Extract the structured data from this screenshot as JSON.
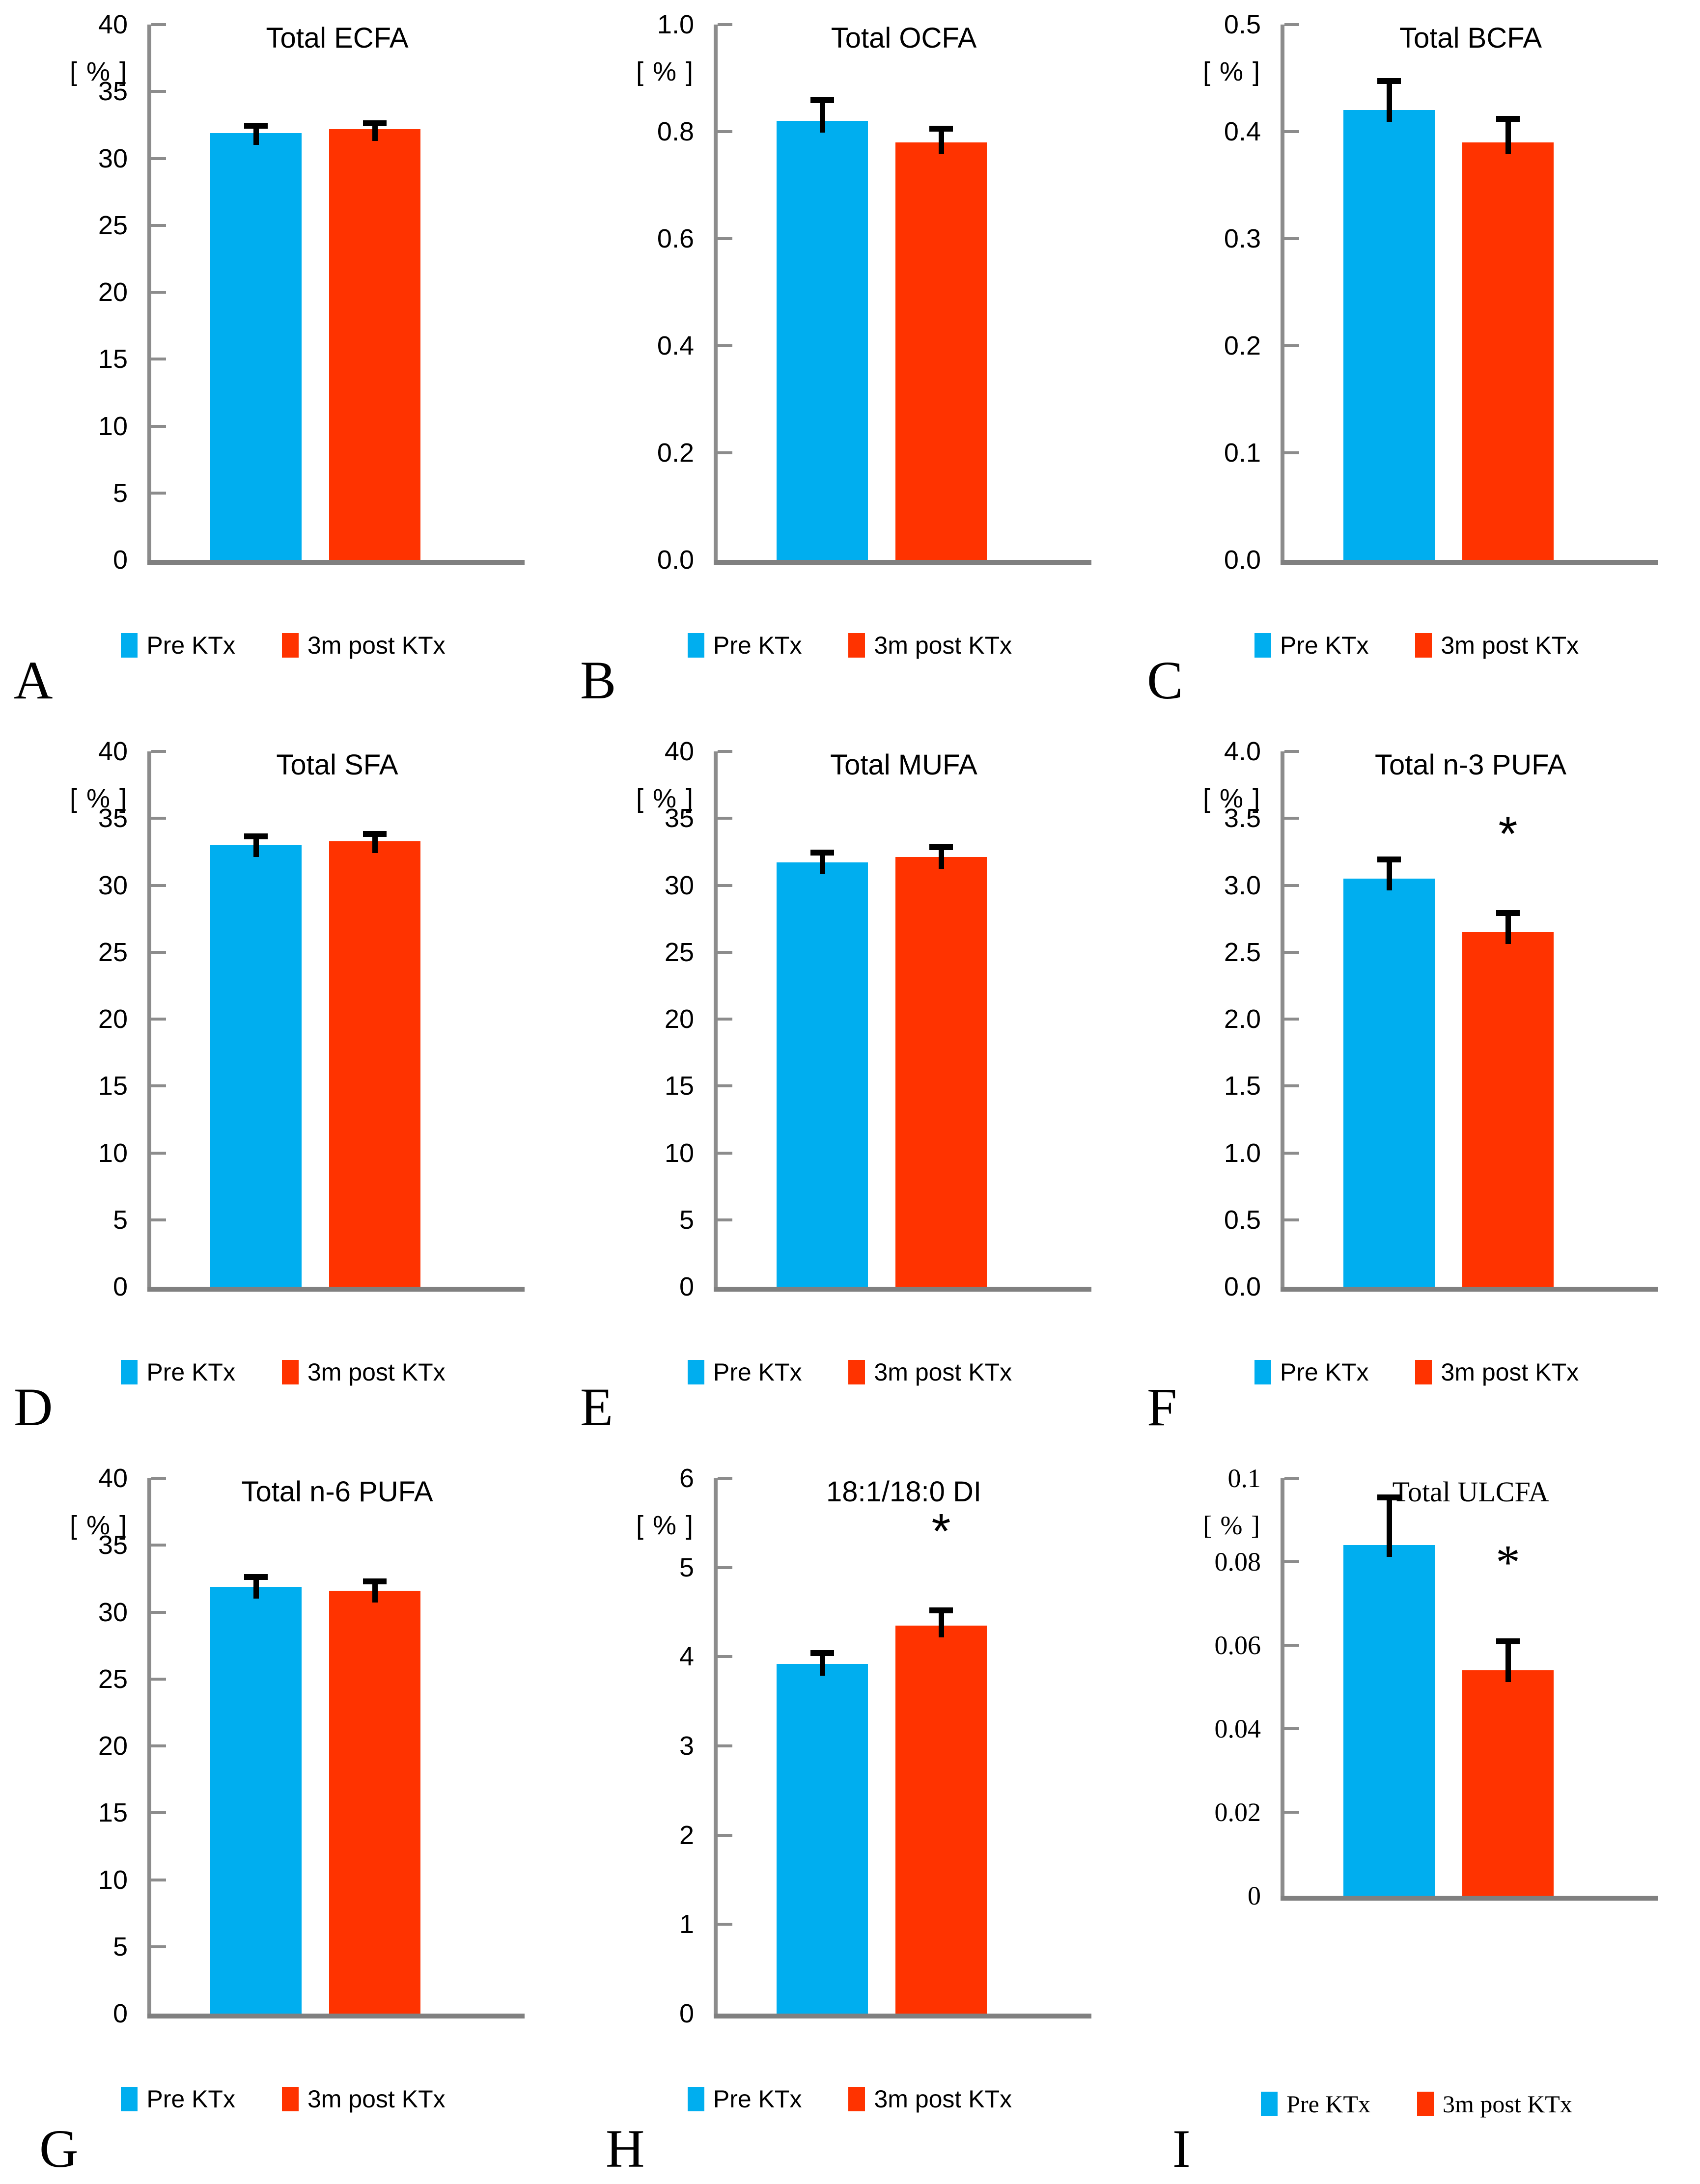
{
  "figure": {
    "colors": {
      "pre": "#00AEEF",
      "post": "#FF3300",
      "axis": "#8C8C8C",
      "baseline": "#808080",
      "error": "#000000",
      "text": "#000000"
    },
    "legend": {
      "pre": "Pre KTx",
      "post": "3m post KTx"
    },
    "significance_marker": "*"
  },
  "chart_data": [
    {
      "panel": "A",
      "type": "bar",
      "title": "Total ECFA",
      "unit_label": "[ % ]",
      "ylim": [
        0,
        40
      ],
      "tick_labels": [
        "40",
        "35",
        "30",
        "25",
        "20",
        "15",
        "10",
        "5",
        "0"
      ],
      "grid": false,
      "legend_position": "bottom",
      "font": "sans",
      "compact": false,
      "categories": [
        "Pre KTx",
        "3m post KTx"
      ],
      "series": [
        {
          "name": "Pre KTx",
          "value": 31.9,
          "error": 0.4
        },
        {
          "name": "3m post KTx",
          "value": 32.2,
          "error": 0.3
        }
      ],
      "significant": false
    },
    {
      "panel": "B",
      "type": "bar",
      "title": "Total OCFA",
      "unit_label": "[ % ]",
      "ylim": [
        0,
        1.0
      ],
      "tick_labels": [
        "1.0",
        "0.8",
        "0.6",
        "0.4",
        "0.2",
        "0.0"
      ],
      "grid": false,
      "legend_position": "bottom",
      "font": "sans",
      "compact": false,
      "categories": [
        "Pre KTx",
        "3m post KTx"
      ],
      "series": [
        {
          "name": "Pre KTx",
          "value": 0.82,
          "error": 0.035
        },
        {
          "name": "3m post KTx",
          "value": 0.78,
          "error": 0.022
        }
      ],
      "significant": false
    },
    {
      "panel": "C",
      "type": "bar",
      "title": "Total BCFA",
      "unit_label": "[ % ]",
      "ylim": [
        0,
        0.5
      ],
      "tick_labels": [
        "0.5",
        "0.4",
        "0.3",
        "0.2",
        "0.1",
        "0.0"
      ],
      "grid": false,
      "legend_position": "bottom",
      "font": "sans",
      "compact": false,
      "categories": [
        "Pre KTx",
        "3m post KTx"
      ],
      "series": [
        {
          "name": "Pre KTx",
          "value": 0.42,
          "error": 0.025
        },
        {
          "name": "3m post KTx",
          "value": 0.39,
          "error": 0.02
        }
      ],
      "significant": false
    },
    {
      "panel": "D",
      "type": "bar",
      "title": "Total SFA",
      "unit_label": "[ % ]",
      "ylim": [
        0,
        40
      ],
      "tick_labels": [
        "40",
        "35",
        "30",
        "25",
        "20",
        "15",
        "10",
        "5",
        "0"
      ],
      "grid": false,
      "legend_position": "bottom",
      "font": "sans",
      "compact": false,
      "categories": [
        "Pre KTx",
        "3m post KTx"
      ],
      "series": [
        {
          "name": "Pre KTx",
          "value": 33.0,
          "error": 0.5
        },
        {
          "name": "3m post KTx",
          "value": 33.3,
          "error": 0.4
        }
      ],
      "significant": false
    },
    {
      "panel": "E",
      "type": "bar",
      "title": "Total MUFA",
      "unit_label": "[ % ]",
      "ylim": [
        0,
        40
      ],
      "tick_labels": [
        "40",
        "35",
        "30",
        "25",
        "20",
        "15",
        "10",
        "5",
        "0"
      ],
      "grid": false,
      "legend_position": "bottom",
      "font": "sans",
      "compact": false,
      "categories": [
        "Pre KTx",
        "3m post KTx"
      ],
      "series": [
        {
          "name": "Pre KTx",
          "value": 31.7,
          "error": 0.6
        },
        {
          "name": "3m post KTx",
          "value": 32.1,
          "error": 0.6
        }
      ],
      "significant": false
    },
    {
      "panel": "F",
      "type": "bar",
      "title": "Total n-3 PUFA",
      "unit_label": "[ % ]",
      "ylim": [
        0,
        4.0
      ],
      "tick_labels": [
        "4.0",
        "3.5",
        "3.0",
        "2.5",
        "2.0",
        "1.5",
        "1.0",
        "0.5",
        "0.0"
      ],
      "grid": false,
      "legend_position": "bottom",
      "font": "sans",
      "compact": false,
      "categories": [
        "Pre KTx",
        "3m post KTx"
      ],
      "series": [
        {
          "name": "Pre KTx",
          "value": 3.05,
          "error": 0.13
        },
        {
          "name": "3m post KTx",
          "value": 2.65,
          "error": 0.13
        }
      ],
      "significant": true
    },
    {
      "panel": "G",
      "type": "bar",
      "title": "Total n-6 PUFA",
      "unit_label": "[ % ]",
      "ylim": [
        0,
        40
      ],
      "tick_labels": [
        "40",
        "35",
        "30",
        "25",
        "20",
        "15",
        "10",
        "5",
        "0"
      ],
      "grid": false,
      "legend_position": "bottom",
      "font": "sans",
      "compact": false,
      "categories": [
        "Pre KTx",
        "3m post KTx"
      ],
      "series": [
        {
          "name": "Pre KTx",
          "value": 31.9,
          "error": 0.6
        },
        {
          "name": "3m post KTx",
          "value": 31.6,
          "error": 0.55
        }
      ],
      "significant": false
    },
    {
      "panel": "H",
      "type": "bar",
      "title": "18:1/18:0 DI",
      "unit_label": "[ % ]",
      "ylim": [
        0,
        6
      ],
      "tick_labels": [
        "6",
        "5",
        "4",
        "3",
        "2",
        "1",
        "0"
      ],
      "grid": false,
      "legend_position": "bottom",
      "font": "sans",
      "compact": false,
      "categories": [
        "Pre KTx",
        "3m post KTx"
      ],
      "series": [
        {
          "name": "Pre KTx",
          "value": 3.92,
          "error": 0.1
        },
        {
          "name": "3m post KTx",
          "value": 4.35,
          "error": 0.15
        }
      ],
      "significant": true
    },
    {
      "panel": "I",
      "type": "bar",
      "title": "Total ULCFA",
      "unit_label": "[ % ]",
      "ylim": [
        0,
        0.1
      ],
      "tick_labels": [
        "0.1",
        "0.08",
        "0.06",
        "0.04",
        "0.02",
        "0"
      ],
      "grid": false,
      "legend_position": "bottom",
      "font": "serif",
      "compact": true,
      "categories": [
        "Pre KTx",
        "3m post KTx"
      ],
      "series": [
        {
          "name": "Pre KTx",
          "value": 0.084,
          "error": 0.011
        },
        {
          "name": "3m post KTx",
          "value": 0.054,
          "error": 0.0065
        }
      ],
      "significant": true
    }
  ]
}
